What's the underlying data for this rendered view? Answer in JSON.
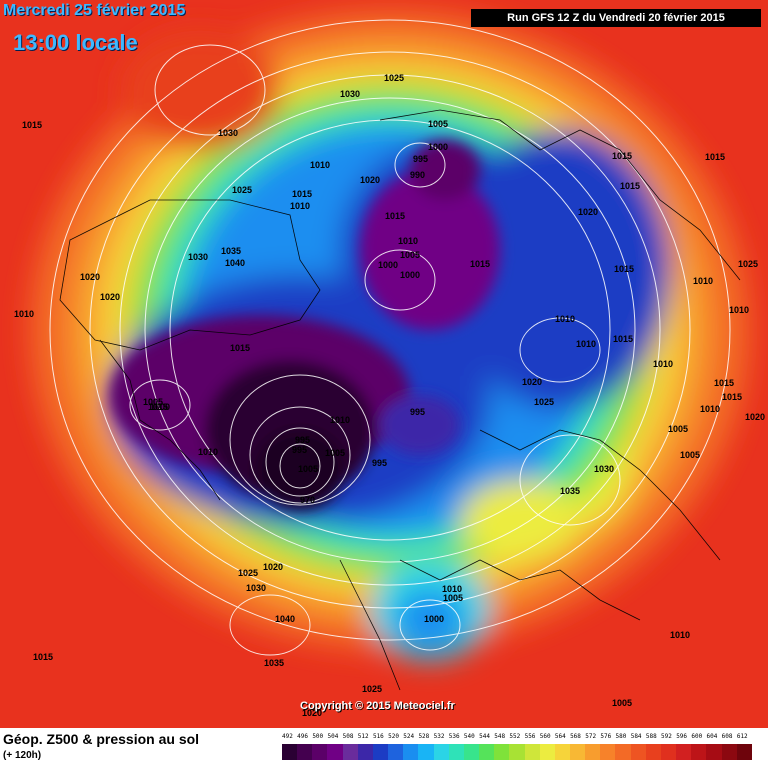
{
  "header": {
    "date": "Mercredi 25 février 2015",
    "time": "13:00 locale",
    "run": "Run GFS 12 Z du Vendredi 20 février 2015"
  },
  "footer": {
    "variable": "Géop. Z500 & pression au sol",
    "lead": "(+ 120h)",
    "copyright": "Copyright © 2015 Meteociel.fr"
  },
  "legend": {
    "labels": [
      "492",
      "496",
      "500",
      "504",
      "508",
      "512",
      "516",
      "520",
      "524",
      "528",
      "532",
      "536",
      "540",
      "544",
      "548",
      "552",
      "556",
      "560",
      "564",
      "568",
      "572",
      "576",
      "580",
      "584",
      "588",
      "592",
      "596",
      "600",
      "604",
      "608",
      "612"
    ],
    "colors": [
      "#2a0033",
      "#44004f",
      "#5b0068",
      "#700085",
      "#6a2c9c",
      "#3c27a8",
      "#1c3cc4",
      "#1e63de",
      "#1a8ef0",
      "#19b4f5",
      "#2bd4e6",
      "#2fe2b8",
      "#38e48c",
      "#55e35a",
      "#7fe23a",
      "#a8e234",
      "#cfe63a",
      "#ecec40",
      "#f6d43a",
      "#f8b834",
      "#f89d2e",
      "#f7822a",
      "#f36a26",
      "#ee5422",
      "#e8401e",
      "#e0301e",
      "#d22020",
      "#bd1418",
      "#a60c14",
      "#8c0810",
      "#6e040c"
    ]
  },
  "map_labels": {
    "pressure_values": [
      "1015",
      "1030",
      "1030",
      "1025",
      "1010",
      "1005",
      "1000",
      "995",
      "990",
      "1020",
      "1015",
      "1015",
      "1010",
      "1025",
      "1015",
      "1010",
      "1035",
      "1040",
      "1030",
      "1020",
      "1020",
      "1010",
      "1010",
      "1000",
      "1005",
      "1015",
      "1000",
      "1015",
      "1020",
      "1015",
      "1015",
      "1025",
      "1010",
      "1010",
      "1020",
      "1025",
      "1015",
      "1010",
      "1005",
      "1015",
      "1000",
      "1015",
      "1010",
      "1010",
      "1015",
      "1020",
      "1015",
      "1005",
      "1005",
      "1010",
      "995",
      "995",
      "995",
      "1005",
      "995",
      "1005",
      "1010",
      "1030",
      "1035",
      "1025",
      "1020",
      "1030",
      "1040",
      "1035",
      "1015",
      "1010",
      "1005",
      "1000",
      "1010",
      "1025",
      "1020",
      "1005",
      "970"
    ]
  }
}
